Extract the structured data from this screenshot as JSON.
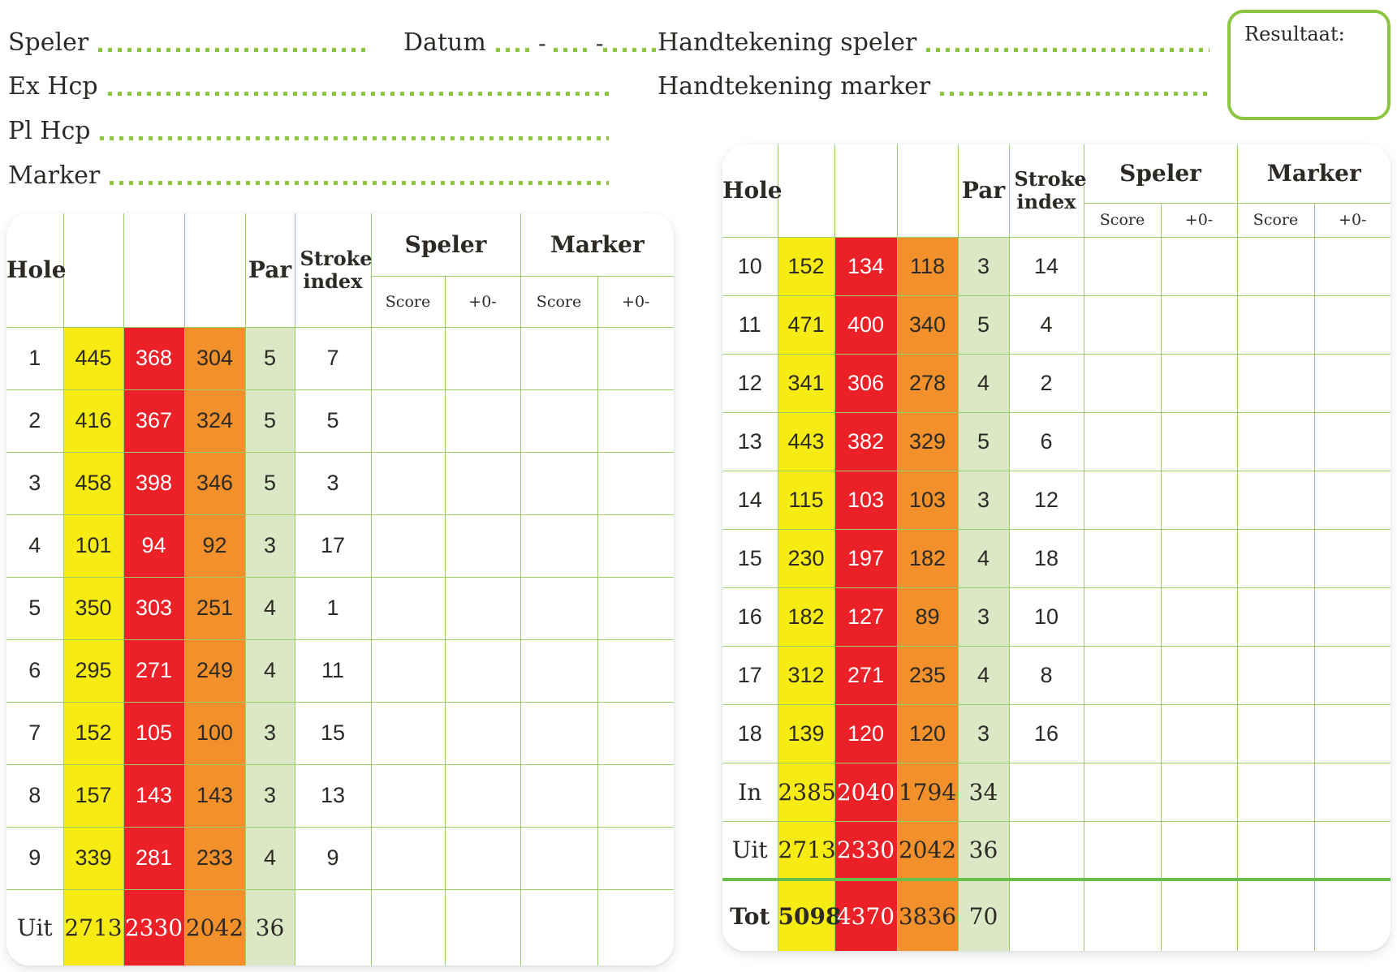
{
  "meta_labels": {
    "speler": "Speler",
    "datum": "Datum",
    "datum_dash": "-",
    "ex_hcp": "Ex Hcp",
    "pl_hcp": "Pl Hcp",
    "marker": "Marker",
    "handtekening_speler": "Handtekening speler",
    "handtekening_marker": "Handtekening marker",
    "resultaat": "Resultaat:"
  },
  "table_headers": {
    "hole": "Hole",
    "par": "Par",
    "stroke_index": "Stroke index",
    "speler": "Speler",
    "marker": "Marker",
    "score": "Score",
    "plus_minus": "+0-"
  },
  "colors": {
    "tee_yellow": "#f6ec13",
    "tee_red": "#ec2027",
    "tee_orange": "#f2902b",
    "par_column_green": "#dce8c5",
    "grid_line_green": "#9cce63",
    "accent_green": "#8cc63f",
    "total_divider_green": "#68bf49",
    "text_dark": "#2d2a26"
  },
  "front_nine": {
    "rows": [
      {
        "hole": "1",
        "yellow": "445",
        "red": "368",
        "orange": "304",
        "par": "5",
        "si": "7"
      },
      {
        "hole": "2",
        "yellow": "416",
        "red": "367",
        "orange": "324",
        "par": "5",
        "si": "5"
      },
      {
        "hole": "3",
        "yellow": "458",
        "red": "398",
        "orange": "346",
        "par": "5",
        "si": "3"
      },
      {
        "hole": "4",
        "yellow": "101",
        "red": "94",
        "orange": "92",
        "par": "3",
        "si": "17"
      },
      {
        "hole": "5",
        "yellow": "350",
        "red": "303",
        "orange": "251",
        "par": "4",
        "si": "1"
      },
      {
        "hole": "6",
        "yellow": "295",
        "red": "271",
        "orange": "249",
        "par": "4",
        "si": "11"
      },
      {
        "hole": "7",
        "yellow": "152",
        "red": "105",
        "orange": "100",
        "par": "3",
        "si": "15"
      },
      {
        "hole": "8",
        "yellow": "157",
        "red": "143",
        "orange": "143",
        "par": "3",
        "si": "13"
      },
      {
        "hole": "9",
        "yellow": "339",
        "red": "281",
        "orange": "233",
        "par": "4",
        "si": "9"
      },
      {
        "hole": "Uit",
        "yellow": "2713",
        "red": "2330",
        "orange": "2042",
        "par": "36",
        "total": true
      }
    ]
  },
  "back_nine": {
    "rows": [
      {
        "hole": "10",
        "yellow": "152",
        "red": "134",
        "orange": "118",
        "par": "3",
        "si": "14"
      },
      {
        "hole": "11",
        "yellow": "471",
        "red": "400",
        "orange": "340",
        "par": "5",
        "si": "4"
      },
      {
        "hole": "12",
        "yellow": "341",
        "red": "306",
        "orange": "278",
        "par": "4",
        "si": "2"
      },
      {
        "hole": "13",
        "yellow": "443",
        "red": "382",
        "orange": "329",
        "par": "5",
        "si": "6"
      },
      {
        "hole": "14",
        "yellow": "115",
        "red": "103",
        "orange": "103",
        "par": "3",
        "si": "12"
      },
      {
        "hole": "15",
        "yellow": "230",
        "red": "197",
        "orange": "182",
        "par": "4",
        "si": "18"
      },
      {
        "hole": "16",
        "yellow": "182",
        "red": "127",
        "orange": "89",
        "par": "3",
        "si": "10"
      },
      {
        "hole": "17",
        "yellow": "312",
        "red": "271",
        "orange": "235",
        "par": "4",
        "si": "8"
      },
      {
        "hole": "18",
        "yellow": "139",
        "red": "120",
        "orange": "120",
        "par": "3",
        "si": "16"
      },
      {
        "hole": "In",
        "yellow": "2385",
        "red": "2040",
        "orange": "1794",
        "par": "34",
        "total": true
      },
      {
        "hole": "Uit",
        "yellow": "2713",
        "red": "2330",
        "orange": "2042",
        "par": "36",
        "total": true
      },
      {
        "hole": "Tot",
        "yellow": "5098",
        "red": "4370",
        "orange": "3836",
        "par": "70",
        "total": true,
        "grand": true
      }
    ]
  }
}
